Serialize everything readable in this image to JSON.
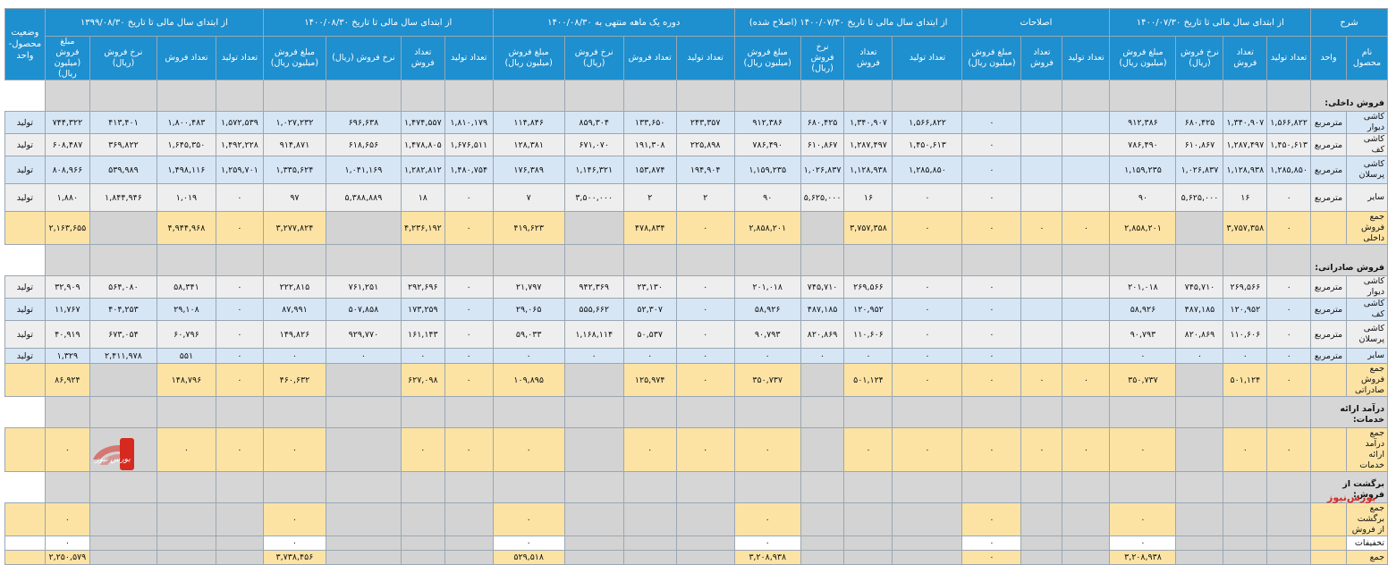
{
  "col_widths": [
    46,
    40,
    43,
    46,
    53,
    74,
    53,
    46,
    66,
    78,
    54,
    46,
    74,
    65,
    59,
    66,
    80,
    54,
    46,
    84,
    70,
    53,
    66,
    75
  ],
  "header": {
    "sharh": "شرح",
    "groups": [
      "از ابتدای سال مالی تا تاریخ ۱۴۰۰/۰۷/۳۰",
      "اصلاحات",
      "از ابتدای سال مالی تا تاریخ ۱۴۰۰/۰۷/۳۰ (اصلاح شده)",
      "دوره یک ماهه منتهی به ۱۴۰۰/۰۸/۳۰",
      "از ابتدای سال مالی تا تاریخ ۱۴۰۰/۰۸/۳۰",
      "از ابتدای سال مالی تا تاریخ ۱۳۹۹/۰۸/۳۰"
    ],
    "status": "وضعیت محصول- واحد",
    "product_name": "نام محصول",
    "unit": "واحد",
    "col_production": "تعداد تولید",
    "col_sales_qty": "تعداد فروش",
    "col_rate": "نرخ فروش (ریال)",
    "col_amount": "مبلغ فروش (میلیون ریال)"
  },
  "rows": [
    {
      "type": "section",
      "label": "فروش داخلی:"
    },
    {
      "type": "data",
      "style": "blue",
      "label": "کاشی دیوار",
      "unit": "مترمربع",
      "status": "تولید",
      "v": [
        "۱,۵۶۶,۸۲۲",
        "۱,۳۴۰,۹۰۷",
        "۶۸۰,۴۲۵",
        "۹۱۲,۳۸۶",
        "",
        "",
        "٠",
        "۱,۵۶۶,۸۲۲",
        "۱,۳۴۰,۹۰۷",
        "۶۸۰,۴۲۵",
        "۹۱۲,۳۸۶",
        "۲۴۳,۳۵۷",
        "۱۳۳,۶۵۰",
        "۸۵۹,۳۰۴",
        "۱۱۴,۸۴۶",
        "۱,۸۱۰,۱۷۹",
        "۱,۴۷۴,۵۵۷",
        "۶۹۶,۶۳۸",
        "۱,۰۲۷,۲۳۲",
        "۱,۵۷۲,۵۳۹",
        "۱,۸۰۰,۴۸۳",
        "۴۱۳,۴۰۱",
        "۷۴۴,۳۲۲"
      ]
    },
    {
      "type": "data",
      "style": "gray",
      "label": "کاشی کف",
      "unit": "مترمربع",
      "status": "تولید",
      "v": [
        "۱,۴۵۰,۶۱۳",
        "۱,۲۸۷,۴۹۷",
        "۶۱۰,۸۶۷",
        "۷۸۶,۴۹۰",
        "",
        "",
        "٠",
        "۱,۴۵۰,۶۱۳",
        "۱,۲۸۷,۴۹۷",
        "۶۱۰,۸۶۷",
        "۷۸۶,۴۹۰",
        "۲۲۵,۸۹۸",
        "۱۹۱,۳۰۸",
        "۶۷۱,۰۷۰",
        "۱۲۸,۳۸۱",
        "۱,۶۷۶,۵۱۱",
        "۱,۴۷۸,۸۰۵",
        "۶۱۸,۶۵۶",
        "۹۱۴,۸۷۱",
        "۱,۴۹۲,۲۲۸",
        "۱,۶۴۵,۳۵۰",
        "۳۶۹,۸۲۲",
        "۶۰۸,۴۸۷"
      ]
    },
    {
      "type": "data",
      "style": "blue",
      "tall": true,
      "label": "کاشی پرسلان",
      "unit": "مترمربع",
      "status": "تولید",
      "v": [
        "۱,۲۸۵,۸۵۰",
        "۱,۱۲۸,۹۳۸",
        "۱,۰۲۶,۸۳۷",
        "۱,۱۵۹,۲۳۵",
        "",
        "",
        "٠",
        "۱,۲۸۵,۸۵۰",
        "۱,۱۲۸,۹۳۸",
        "۱,۰۲۶,۸۳۷",
        "۱,۱۵۹,۲۳۵",
        "۱۹۴,۹۰۴",
        "۱۵۳,۸۷۴",
        "۱,۱۴۶,۳۲۱",
        "۱۷۶,۳۸۹",
        "۱,۴۸۰,۷۵۴",
        "۱,۲۸۲,۸۱۲",
        "۱,۰۴۱,۱۶۹",
        "۱,۳۳۵,۶۲۴",
        "۱,۲۵۹,۷۰۱",
        "۱,۴۹۸,۱۱۶",
        "۵۳۹,۹۸۹",
        "۸۰۸,۹۶۶"
      ]
    },
    {
      "type": "data",
      "style": "gray",
      "tall": true,
      "label": "سایر",
      "unit": "مترمربع",
      "status": "تولید",
      "v": [
        "٠",
        "۱۶",
        "۵,۶۲۵,۰۰۰",
        "۹۰",
        "",
        "",
        "٠",
        "٠",
        "۱۶",
        "۵,۶۲۵,۰۰۰",
        "۹۰",
        "۲",
        "۲",
        "۳,۵۰۰,۰۰۰",
        "۷",
        "٠",
        "۱۸",
        "۵,۳۸۸,۸۸۹",
        "۹۷",
        "٠",
        "۱,۰۱۹",
        "۱,۸۴۴,۹۴۶",
        "۱,۸۸۰"
      ]
    },
    {
      "type": "total",
      "label": "جمع فروش داخلی",
      "unit": "",
      "status": "",
      "v": [
        "٠",
        "۳,۷۵۷,۳۵۸",
        "",
        "۲,۸۵۸,۲۰۱",
        "٠",
        "٠",
        "٠",
        "٠",
        "۳,۷۵۷,۳۵۸",
        "",
        "۲,۸۵۸,۲۰۱",
        "٠",
        "۴۷۸,۸۳۴",
        "",
        "۴۱۹,۶۲۳",
        "٠",
        "۴,۲۳۶,۱۹۲",
        "",
        "۳,۲۷۷,۸۲۴",
        "٠",
        "۴,۹۴۴,۹۶۸",
        "",
        "۲,۱۶۳,۶۵۵"
      ]
    },
    {
      "type": "section",
      "label": "فروش صادراتی:"
    },
    {
      "type": "data",
      "style": "gray",
      "label": "کاشی دیوار",
      "unit": "مترمربع",
      "status": "تولید",
      "v": [
        "٠",
        "۲۶۹,۵۶۶",
        "۷۴۵,۷۱۰",
        "۲۰۱,۰۱۸",
        "",
        "",
        "٠",
        "٠",
        "۲۶۹,۵۶۶",
        "۷۴۵,۷۱۰",
        "۲۰۱,۰۱۸",
        "٠",
        "۲۳,۱۳۰",
        "۹۴۲,۳۶۹",
        "۲۱,۷۹۷",
        "٠",
        "۲۹۲,۶۹۶",
        "۷۶۱,۲۵۱",
        "۲۲۲,۸۱۵",
        "٠",
        "۵۸,۳۴۱",
        "۵۶۴,۰۸۰",
        "۳۲,۹۰۹"
      ]
    },
    {
      "type": "data",
      "style": "blue",
      "label": "کاشی کف",
      "unit": "مترمربع",
      "status": "تولید",
      "v": [
        "٠",
        "۱۲۰,۹۵۲",
        "۴۸۷,۱۸۵",
        "۵۸,۹۲۶",
        "",
        "",
        "٠",
        "٠",
        "۱۲۰,۹۵۲",
        "۴۸۷,۱۸۵",
        "۵۸,۹۲۶",
        "٠",
        "۵۲,۳۰۷",
        "۵۵۵,۶۶۲",
        "۲۹,۰۶۵",
        "٠",
        "۱۷۳,۲۵۹",
        "۵۰۷,۸۵۸",
        "۸۷,۹۹۱",
        "٠",
        "۲۹,۱۰۸",
        "۴۰۴,۲۵۳",
        "۱۱,۷۶۷"
      ]
    },
    {
      "type": "data",
      "style": "gray",
      "tall": true,
      "label": "کاشی پرسلان",
      "unit": "مترمربع",
      "status": "تولید",
      "v": [
        "٠",
        "۱۱۰,۶۰۶",
        "۸۲۰,۸۶۹",
        "۹۰,۷۹۳",
        "",
        "",
        "٠",
        "٠",
        "۱۱۰,۶۰۶",
        "۸۲۰,۸۶۹",
        "۹۰,۷۹۳",
        "٠",
        "۵۰,۵۳۷",
        "۱,۱۶۸,۱۱۴",
        "۵۹,۰۳۳",
        "٠",
        "۱۶۱,۱۴۳",
        "۹۲۹,۷۷۰",
        "۱۴۹,۸۲۶",
        "٠",
        "۶۰,۷۹۶",
        "۶۷۳,۰۵۴",
        "۴۰,۹۱۹"
      ]
    },
    {
      "type": "data",
      "style": "blue",
      "label": "سایر",
      "unit": "مترمربع",
      "status": "تولید",
      "v": [
        "٠",
        "٠",
        "٠",
        "٠",
        "",
        "",
        "٠",
        "٠",
        "٠",
        "٠",
        "٠",
        "٠",
        "٠",
        "٠",
        "٠",
        "٠",
        "٠",
        "٠",
        "٠",
        "٠",
        "۵۵۱",
        "۲,۴۱۱,۹۷۸",
        "۱,۳۲۹"
      ]
    },
    {
      "type": "total",
      "label": "جمع فروش صادراتی",
      "unit": "",
      "status": "",
      "v": [
        "٠",
        "۵۰۱,۱۲۴",
        "",
        "۳۵۰,۷۳۷",
        "٠",
        "٠",
        "٠",
        "٠",
        "۵۰۱,۱۲۴",
        "",
        "۳۵۰,۷۳۷",
        "٠",
        "۱۲۵,۹۷۴",
        "",
        "۱۰۹,۸۹۵",
        "٠",
        "۶۲۷,۰۹۸",
        "",
        "۴۶۰,۶۳۲",
        "٠",
        "۱۴۸,۷۹۶",
        "",
        "۸۶,۹۲۴"
      ]
    },
    {
      "type": "section",
      "label": "درآمد ارائه خدمات:"
    },
    {
      "type": "total",
      "label": "جمع درآمد ارائه خدمات",
      "unit": "",
      "status": "",
      "v": [
        "٠",
        "٠",
        "",
        "٠",
        "٠",
        "٠",
        "٠",
        "٠",
        "٠",
        "",
        "٠",
        "٠",
        "٠",
        "",
        "٠",
        "٠",
        "٠",
        "",
        "٠",
        "٠",
        "٠",
        "",
        "٠"
      ]
    },
    {
      "type": "section",
      "label": "برگشت از فروش:"
    },
    {
      "type": "total",
      "label": "جمع برگشت از فروش",
      "unit": "",
      "status": "",
      "v": [
        "",
        "",
        "",
        "٠",
        "",
        "",
        "٠",
        "",
        "",
        "",
        "٠",
        "",
        "",
        "",
        "٠",
        "",
        "",
        "",
        "٠",
        "",
        "",
        "",
        "٠"
      ]
    },
    {
      "type": "total",
      "short": true,
      "white": true,
      "label": "تخفیفات",
      "unit": "",
      "status": "",
      "v": [
        "",
        "",
        "",
        "٠",
        "",
        "",
        "٠",
        "",
        "",
        "",
        "٠",
        "",
        "",
        "",
        "٠",
        "",
        "",
        "",
        "٠",
        "",
        "",
        "",
        "٠"
      ]
    },
    {
      "type": "total",
      "short": true,
      "label": "جمع",
      "unit": "",
      "status": "",
      "v": [
        "",
        "",
        "",
        "۳,۲۰۸,۹۳۸",
        "",
        "",
        "٠",
        "",
        "",
        "",
        "۳,۲۰۸,۹۳۸",
        "",
        "",
        "",
        "۵۲۹,۵۱۸",
        "",
        "",
        "",
        "۳,۷۳۸,۴۵۶",
        "",
        "",
        "",
        "۲,۲۵۰,۵۷۹"
      ]
    }
  ],
  "brand": {
    "logo_text": "بورس نیوز",
    "watermark": "بورس‌نیوز",
    "logo_color": "#d62a20"
  }
}
